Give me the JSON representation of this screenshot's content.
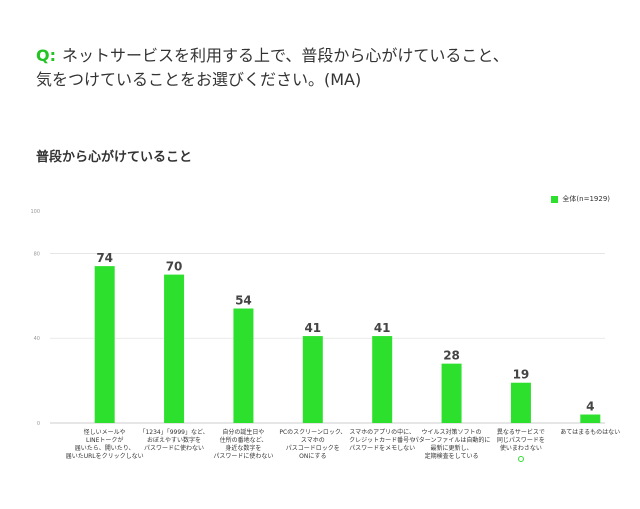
{
  "question": {
    "marker": "Q:",
    "line1": "ネットサービスを利用する上で、普段から心がけていること、",
    "line2": "気をつけていることをお選びください。(MA)"
  },
  "chart_data": {
    "type": "bar",
    "title": "普段から心がけていること",
    "legend_position": "top-right",
    "grid": true,
    "ylim": [
      0,
      100
    ],
    "yticks": [
      "100",
      "80",
      "40",
      "0"
    ],
    "series": [
      {
        "name": "全体(n=1929)",
        "color": "#2ee02e",
        "values": [
          74,
          70,
          54,
          41,
          41,
          28,
          19,
          4
        ]
      }
    ],
    "categories": [
      "怪しいメールや\nLINEトークが\n届いたら、開いたり、\n届いたURLをクリックしない",
      "「1234」「9999」など、\nおぼえやすい数字を\nパスワードに使わない",
      "自分の誕生日や\n住所の番地など、\n身近な数字を\nパスワードに使わない",
      "PCのスクリーンロック、\nスマホの\nパスコードロックを\nONにする",
      "スマホのアプリの中に、\nクレジットカード番号や\nパスワードをメモしない",
      "ウイルス対策ソフトの\nパターンファイルは自動的に\n最新に更新し、\n定期検査をしている",
      "異なるサービスで\n同じパスワードを\n使いまわさない",
      "あてはまるものはない"
    ],
    "highlight_marker_category_index": 6
  }
}
